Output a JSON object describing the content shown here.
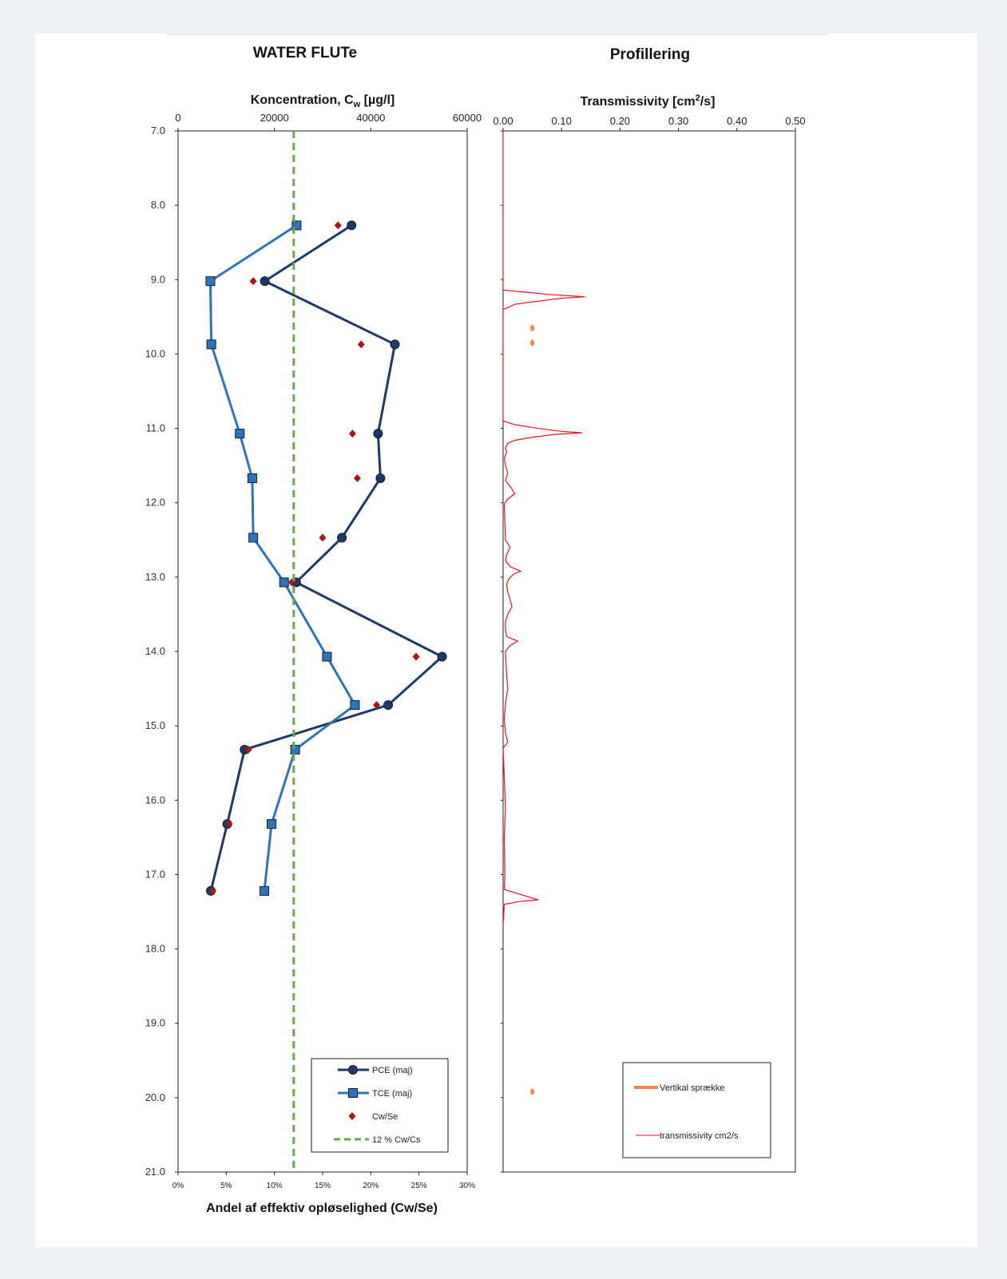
{
  "left_panel_title": "WATER FLUTe",
  "right_panel_title": "Profillering",
  "chart_data": [
    {
      "type": "line",
      "title": "WATER FLUTe",
      "xlabel_top": "Koncentration, C",
      "xlabel_top_sub": "w",
      "xlabel_top_unit": " [µg/l]",
      "xlabel_bottom": "Andel af effektiv opløselighed (Cw/Se)",
      "x_top_ticks": [
        "0",
        "20000",
        "40000",
        "60000"
      ],
      "x_top_lim": [
        0,
        60000
      ],
      "x_bottom_ticks": [
        "0%",
        "5%",
        "10%",
        "15%",
        "20%",
        "25%",
        "30%"
      ],
      "x_bottom_lim": [
        0,
        30
      ],
      "y_ticks": [
        "7.0",
        "8.0",
        "9.0",
        "10.0",
        "11.0",
        "12.0",
        "13.0",
        "14.0",
        "15.0",
        "16.0",
        "17.0",
        "18.0",
        "19.0",
        "20.0",
        "21.0"
      ],
      "ylim": [
        7,
        21
      ],
      "y_inverted": true,
      "series": [
        {
          "name": "PCE (maj)",
          "axis": "top",
          "color": "#1f3864",
          "marker": "circle",
          "points": [
            [
              8.27,
              36000
            ],
            [
              9.02,
              18000
            ],
            [
              9.87,
              45000
            ],
            [
              11.07,
              41500
            ],
            [
              11.67,
              42000
            ],
            [
              12.47,
              34000
            ],
            [
              13.07,
              24500
            ],
            [
              14.07,
              54800
            ],
            [
              14.72,
              43600
            ],
            [
              15.32,
              13800
            ],
            [
              16.32,
              10200
            ],
            [
              17.22,
              6800
            ]
          ]
        },
        {
          "name": "TCE (maj)",
          "axis": "top",
          "color": "#2f75b5",
          "marker": "square",
          "points": [
            [
              8.27,
              24600
            ],
            [
              9.02,
              6700
            ],
            [
              9.87,
              6900
            ],
            [
              11.07,
              12800
            ],
            [
              11.67,
              15400
            ],
            [
              12.47,
              15600
            ],
            [
              13.07,
              22000
            ],
            [
              14.07,
              30900
            ],
            [
              14.72,
              36700
            ],
            [
              15.32,
              24300
            ],
            [
              16.32,
              19400
            ],
            [
              17.22,
              17900
            ]
          ]
        },
        {
          "name": "Cw/Se",
          "axis": "bottom",
          "color": "#a51818",
          "marker": "diamond",
          "points": [
            [
              8.27,
              16.6
            ],
            [
              9.02,
              7.8
            ],
            [
              9.87,
              19.0
            ],
            [
              11.07,
              18.1
            ],
            [
              11.67,
              18.6
            ],
            [
              12.47,
              15.0
            ],
            [
              13.07,
              11.8
            ],
            [
              14.07,
              24.7
            ],
            [
              14.72,
              20.6
            ],
            [
              15.32,
              7.3
            ],
            [
              16.32,
              5.3
            ],
            [
              17.22,
              3.6
            ]
          ]
        },
        {
          "name": "12 % Cw/Cs",
          "axis": "bottom",
          "color": "#6aa84f",
          "style": "dashed",
          "x_value": 12
        }
      ],
      "legend_position": "bottom-right"
    },
    {
      "type": "line",
      "title": "Profillering",
      "xlabel_top": "Transmissivity [cm",
      "xlabel_top_sup": "2",
      "xlabel_top_unit": "/s]",
      "x_top_ticks": [
        "0.00",
        "0.10",
        "0.20",
        "0.30",
        "0.40",
        "0.50"
      ],
      "x_top_lim": [
        0,
        0.5
      ],
      "ylim": [
        7,
        21
      ],
      "y_inverted": true,
      "series": [
        {
          "name": "transmissivity cm2/s",
          "color": "#e8121c",
          "style": "solid",
          "points": [
            [
              9.0,
              0.0
            ],
            [
              9.14,
              0.0
            ],
            [
              9.17,
              0.04
            ],
            [
              9.2,
              0.08
            ],
            [
              9.22,
              0.12
            ],
            [
              9.23,
              0.14
            ],
            [
              9.25,
              0.1
            ],
            [
              9.27,
              0.08
            ],
            [
              9.3,
              0.05
            ],
            [
              9.33,
              0.02
            ],
            [
              9.37,
              0.01
            ],
            [
              9.4,
              0.0
            ],
            [
              10.9,
              0.0
            ],
            [
              10.95,
              0.02
            ],
            [
              11.0,
              0.06
            ],
            [
              11.04,
              0.1
            ],
            [
              11.06,
              0.135
            ],
            [
              11.08,
              0.09
            ],
            [
              11.12,
              0.05
            ],
            [
              11.16,
              0.02
            ],
            [
              11.2,
              0.008
            ],
            [
              11.26,
              0.004
            ],
            [
              11.32,
              0.006
            ],
            [
              11.4,
              0.002
            ],
            [
              11.5,
              0.004
            ],
            [
              11.6,
              0.008
            ],
            [
              11.7,
              0.004
            ],
            [
              11.8,
              0.014
            ],
            [
              11.88,
              0.02
            ],
            [
              11.95,
              0.008
            ],
            [
              12.02,
              0.002
            ],
            [
              12.5,
              0.004
            ],
            [
              12.6,
              0.012
            ],
            [
              12.7,
              0.006
            ],
            [
              12.78,
              0.004
            ],
            [
              12.86,
              0.012
            ],
            [
              12.92,
              0.03
            ],
            [
              12.96,
              0.018
            ],
            [
              13.02,
              0.01
            ],
            [
              13.1,
              0.006
            ],
            [
              13.2,
              0.008
            ],
            [
              13.3,
              0.012
            ],
            [
              13.4,
              0.015
            ],
            [
              13.5,
              0.008
            ],
            [
              13.6,
              0.004
            ],
            [
              13.7,
              0.004
            ],
            [
              13.8,
              0.006
            ],
            [
              13.86,
              0.025
            ],
            [
              13.92,
              0.012
            ],
            [
              14.0,
              0.004
            ],
            [
              14.3,
              0.006
            ],
            [
              14.5,
              0.008
            ],
            [
              14.7,
              0.004
            ],
            [
              14.9,
              0.002
            ],
            [
              15.1,
              0.004
            ],
            [
              15.22,
              0.008
            ],
            [
              15.3,
              0.0
            ],
            [
              16.1,
              0.004
            ],
            [
              16.5,
              0.002
            ],
            [
              17.0,
              0.003
            ],
            [
              17.2,
              0.002
            ],
            [
              17.34,
              0.06
            ],
            [
              17.36,
              0.03
            ],
            [
              17.4,
              0.002
            ],
            [
              17.68,
              0.0
            ]
          ]
        },
        {
          "name": "Vertikal sprække",
          "color": "#f4864a",
          "style": "marker",
          "points": [
            [
              9.65,
              0.05
            ],
            [
              9.85,
              0.05
            ],
            [
              19.92,
              0.05
            ]
          ]
        }
      ],
      "legend_position": "bottom-right"
    }
  ]
}
